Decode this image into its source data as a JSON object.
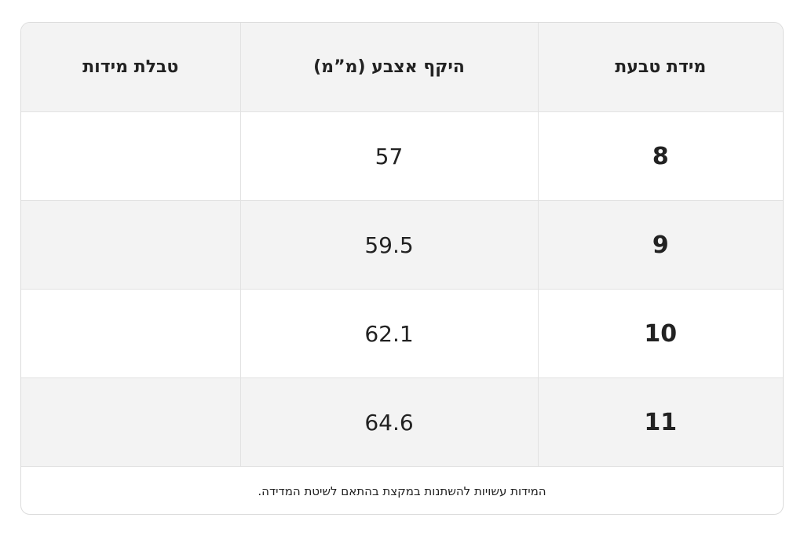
{
  "table": {
    "headers": [
      "מידת טבעת",
      "היקף אצבע (מ”מ)",
      "טבלת מידות"
    ],
    "rows": [
      [
        8,
        57
      ],
      [
        9,
        59.5
      ],
      [
        10,
        62.1
      ],
      [
        11,
        64.6
      ]
    ],
    "note": "המידות עשויות להשתנות במקצת בהתאם לשיטת המדידה."
  }
}
